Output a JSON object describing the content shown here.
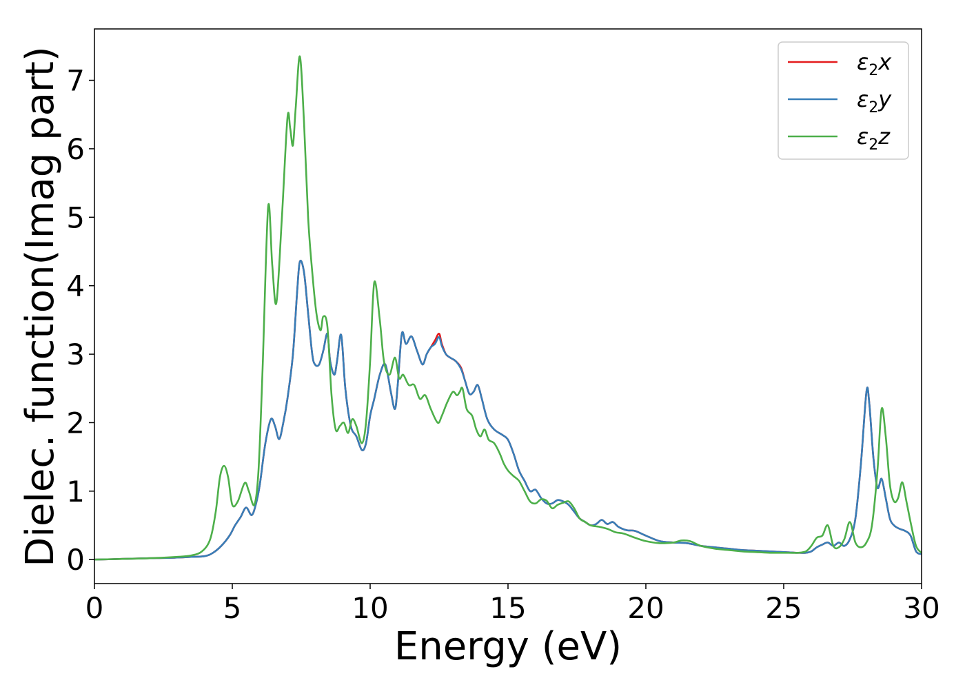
{
  "chart_data": {
    "type": "line",
    "title": "",
    "xlabel": "Energy (eV)",
    "ylabel": "Dielec. function(Imag part)",
    "xlim": [
      0,
      30
    ],
    "ylim": [
      -0.35,
      7.75
    ],
    "xticks": [
      0,
      5,
      10,
      15,
      20,
      25,
      30
    ],
    "yticks": [
      0,
      1,
      2,
      3,
      4,
      5,
      6,
      7
    ],
    "grid": false,
    "legend_position": "top-right",
    "series": [
      {
        "name": "ε₂x",
        "legend_base": "ε",
        "legend_sub": "2",
        "legend_var": "x",
        "color": "#e41a1c",
        "x": [
          0,
          1,
          2,
          3,
          3.5,
          4,
          4.3,
          4.6,
          4.9,
          5.1,
          5.3,
          5.5,
          5.7,
          5.85,
          6.0,
          6.2,
          6.4,
          6.55,
          6.7,
          6.85,
          7.0,
          7.2,
          7.35,
          7.45,
          7.6,
          7.75,
          7.9,
          8.0,
          8.15,
          8.3,
          8.45,
          8.55,
          8.7,
          8.8,
          8.95,
          9.1,
          9.3,
          9.5,
          9.7,
          9.85,
          10.0,
          10.15,
          10.35,
          10.55,
          10.75,
          10.9,
          11.0,
          11.15,
          11.3,
          11.5,
          11.7,
          11.9,
          12.05,
          12.2,
          12.35,
          12.5,
          12.6,
          12.75,
          12.9,
          13.1,
          13.3,
          13.45,
          13.6,
          13.75,
          13.9,
          14.05,
          14.25,
          14.5,
          14.8,
          15.0,
          15.2,
          15.4,
          15.6,
          15.8,
          16.0,
          16.2,
          16.4,
          16.6,
          16.8,
          17.0,
          17.2,
          17.4,
          17.6,
          17.8,
          18.0,
          18.2,
          18.4,
          18.6,
          18.8,
          19.0,
          19.3,
          19.6,
          20.0,
          20.5,
          21.0,
          21.5,
          22.0,
          22.5,
          23.0,
          23.5,
          24.0,
          24.5,
          25.0,
          25.5,
          25.8,
          26.0,
          26.2,
          26.4,
          26.6,
          26.8,
          27.0,
          27.2,
          27.4,
          27.6,
          27.8,
          28.0,
          28.1,
          28.25,
          28.4,
          28.55,
          28.7,
          28.85,
          29.0,
          29.2,
          29.4,
          29.6,
          29.8,
          30.0
        ],
        "y": [
          0.0,
          0.01,
          0.02,
          0.03,
          0.04,
          0.05,
          0.1,
          0.2,
          0.35,
          0.5,
          0.62,
          0.76,
          0.65,
          0.8,
          1.1,
          1.7,
          2.05,
          1.95,
          1.76,
          2.0,
          2.35,
          3.0,
          3.9,
          4.35,
          4.2,
          3.6,
          3.0,
          2.85,
          2.85,
          3.05,
          3.3,
          2.9,
          2.7,
          2.9,
          3.28,
          2.5,
          1.95,
          1.8,
          1.6,
          1.7,
          2.1,
          2.35,
          2.7,
          2.85,
          2.45,
          2.2,
          2.55,
          3.3,
          3.15,
          3.26,
          3.05,
          2.85,
          3.0,
          3.1,
          3.2,
          3.3,
          3.15,
          3.0,
          2.95,
          2.9,
          2.8,
          2.6,
          2.42,
          2.45,
          2.55,
          2.35,
          2.05,
          1.9,
          1.82,
          1.75,
          1.55,
          1.3,
          1.15,
          1.0,
          1.02,
          0.9,
          0.82,
          0.82,
          0.87,
          0.85,
          0.8,
          0.7,
          0.6,
          0.55,
          0.5,
          0.52,
          0.58,
          0.52,
          0.55,
          0.48,
          0.43,
          0.42,
          0.35,
          0.27,
          0.25,
          0.24,
          0.2,
          0.18,
          0.16,
          0.14,
          0.13,
          0.12,
          0.11,
          0.1,
          0.1,
          0.12,
          0.18,
          0.22,
          0.25,
          0.2,
          0.25,
          0.2,
          0.3,
          0.6,
          1.4,
          2.45,
          2.3,
          1.5,
          1.05,
          1.18,
          0.9,
          0.6,
          0.5,
          0.45,
          0.42,
          0.35,
          0.12,
          0.08
        ]
      },
      {
        "name": "ε₂y",
        "legend_base": "ε",
        "legend_sub": "2",
        "legend_var": "y",
        "color": "#377eb8",
        "x": [
          0,
          1,
          2,
          3,
          3.5,
          4,
          4.3,
          4.6,
          4.9,
          5.1,
          5.3,
          5.5,
          5.7,
          5.85,
          6.0,
          6.2,
          6.4,
          6.55,
          6.7,
          6.85,
          7.0,
          7.2,
          7.35,
          7.45,
          7.6,
          7.75,
          7.9,
          8.0,
          8.15,
          8.3,
          8.45,
          8.55,
          8.7,
          8.8,
          8.95,
          9.1,
          9.3,
          9.5,
          9.7,
          9.85,
          10.0,
          10.15,
          10.35,
          10.55,
          10.75,
          10.9,
          11.0,
          11.15,
          11.3,
          11.5,
          11.7,
          11.9,
          12.05,
          12.2,
          12.35,
          12.5,
          12.6,
          12.75,
          12.9,
          13.1,
          13.3,
          13.45,
          13.6,
          13.75,
          13.9,
          14.05,
          14.25,
          14.5,
          14.8,
          15.0,
          15.2,
          15.4,
          15.6,
          15.8,
          16.0,
          16.2,
          16.4,
          16.6,
          16.8,
          17.0,
          17.2,
          17.4,
          17.6,
          17.8,
          18.0,
          18.2,
          18.4,
          18.6,
          18.8,
          19.0,
          19.3,
          19.6,
          20.0,
          20.5,
          21.0,
          21.5,
          22.0,
          22.5,
          23.0,
          23.5,
          24.0,
          24.5,
          25.0,
          25.5,
          25.8,
          26.0,
          26.2,
          26.4,
          26.6,
          26.8,
          27.0,
          27.2,
          27.4,
          27.6,
          27.8,
          28.0,
          28.1,
          28.25,
          28.4,
          28.55,
          28.7,
          28.85,
          29.0,
          29.2,
          29.4,
          29.6,
          29.8,
          30.0
        ],
        "y": [
          0.0,
          0.01,
          0.02,
          0.03,
          0.04,
          0.05,
          0.1,
          0.2,
          0.35,
          0.5,
          0.62,
          0.76,
          0.65,
          0.8,
          1.1,
          1.7,
          2.05,
          1.95,
          1.76,
          2.0,
          2.35,
          3.0,
          3.9,
          4.35,
          4.2,
          3.6,
          3.0,
          2.85,
          2.85,
          3.05,
          3.3,
          2.9,
          2.7,
          2.9,
          3.28,
          2.5,
          1.95,
          1.8,
          1.6,
          1.7,
          2.1,
          2.35,
          2.7,
          2.85,
          2.45,
          2.2,
          2.55,
          3.3,
          3.15,
          3.26,
          3.05,
          2.85,
          3.0,
          3.1,
          3.15,
          3.25,
          3.12,
          3.0,
          2.95,
          2.9,
          2.78,
          2.6,
          2.42,
          2.45,
          2.55,
          2.35,
          2.05,
          1.9,
          1.82,
          1.75,
          1.55,
          1.3,
          1.15,
          1.0,
          1.02,
          0.9,
          0.82,
          0.82,
          0.87,
          0.85,
          0.8,
          0.7,
          0.6,
          0.55,
          0.5,
          0.52,
          0.58,
          0.52,
          0.55,
          0.48,
          0.43,
          0.42,
          0.35,
          0.27,
          0.25,
          0.24,
          0.2,
          0.18,
          0.16,
          0.14,
          0.13,
          0.12,
          0.11,
          0.1,
          0.1,
          0.12,
          0.18,
          0.22,
          0.25,
          0.2,
          0.25,
          0.2,
          0.3,
          0.6,
          1.4,
          2.45,
          2.3,
          1.5,
          1.05,
          1.18,
          0.9,
          0.6,
          0.5,
          0.45,
          0.42,
          0.35,
          0.12,
          0.08
        ]
      },
      {
        "name": "ε₂z",
        "legend_base": "ε",
        "legend_sub": "2",
        "legend_var": "z",
        "color": "#4daf4a",
        "x": [
          0,
          1,
          2,
          3,
          3.5,
          3.9,
          4.2,
          4.4,
          4.55,
          4.7,
          4.85,
          5.0,
          5.2,
          5.45,
          5.6,
          5.8,
          5.95,
          6.1,
          6.3,
          6.45,
          6.6,
          6.8,
          7.0,
          7.1,
          7.2,
          7.3,
          7.45,
          7.6,
          7.75,
          7.9,
          8.05,
          8.2,
          8.3,
          8.45,
          8.6,
          8.75,
          8.9,
          9.05,
          9.2,
          9.35,
          9.5,
          9.7,
          9.85,
          10.0,
          10.15,
          10.35,
          10.5,
          10.7,
          10.9,
          11.05,
          11.2,
          11.4,
          11.6,
          11.8,
          12.0,
          12.2,
          12.45,
          12.6,
          12.8,
          13.0,
          13.15,
          13.25,
          13.35,
          13.5,
          13.7,
          13.85,
          14.0,
          14.15,
          14.3,
          14.5,
          14.7,
          14.85,
          15.0,
          15.2,
          15.4,
          15.6,
          15.8,
          16.0,
          16.2,
          16.4,
          16.6,
          16.8,
          17.0,
          17.2,
          17.4,
          17.6,
          17.8,
          18.0,
          18.3,
          18.6,
          18.9,
          19.2,
          19.6,
          20.0,
          20.5,
          21.0,
          21.3,
          21.6,
          22.0,
          22.5,
          23.0,
          23.5,
          24.0,
          24.5,
          25.0,
          25.5,
          25.8,
          26.0,
          26.2,
          26.4,
          26.6,
          26.8,
          27.0,
          27.2,
          27.4,
          27.6,
          27.8,
          28.0,
          28.2,
          28.4,
          28.55,
          28.7,
          28.85,
          29.0,
          29.15,
          29.3,
          29.45,
          29.6,
          29.8,
          30.0
        ],
        "y": [
          0.0,
          0.01,
          0.02,
          0.04,
          0.06,
          0.12,
          0.3,
          0.7,
          1.2,
          1.37,
          1.2,
          0.8,
          0.85,
          1.12,
          1.0,
          0.8,
          1.3,
          2.8,
          5.15,
          4.3,
          3.75,
          5.0,
          6.45,
          6.3,
          6.05,
          6.6,
          7.35,
          6.4,
          5.0,
          4.2,
          3.6,
          3.35,
          3.55,
          3.4,
          2.4,
          1.9,
          1.95,
          2.0,
          1.85,
          2.05,
          1.95,
          1.7,
          2.0,
          2.9,
          4.05,
          3.5,
          2.9,
          2.7,
          2.95,
          2.65,
          2.7,
          2.55,
          2.55,
          2.35,
          2.4,
          2.2,
          2.0,
          2.1,
          2.3,
          2.45,
          2.4,
          2.45,
          2.5,
          2.2,
          2.1,
          1.9,
          1.8,
          1.9,
          1.75,
          1.7,
          1.55,
          1.4,
          1.3,
          1.22,
          1.15,
          1.0,
          0.85,
          0.82,
          0.88,
          0.86,
          0.75,
          0.8,
          0.83,
          0.85,
          0.75,
          0.6,
          0.55,
          0.5,
          0.48,
          0.45,
          0.4,
          0.38,
          0.32,
          0.27,
          0.24,
          0.25,
          0.28,
          0.27,
          0.2,
          0.16,
          0.14,
          0.12,
          0.11,
          0.1,
          0.1,
          0.1,
          0.12,
          0.2,
          0.32,
          0.35,
          0.5,
          0.2,
          0.18,
          0.3,
          0.55,
          0.25,
          0.18,
          0.25,
          0.5,
          1.3,
          2.2,
          1.8,
          1.1,
          0.85,
          0.9,
          1.13,
          0.85,
          0.55,
          0.2,
          0.1
        ]
      }
    ]
  }
}
